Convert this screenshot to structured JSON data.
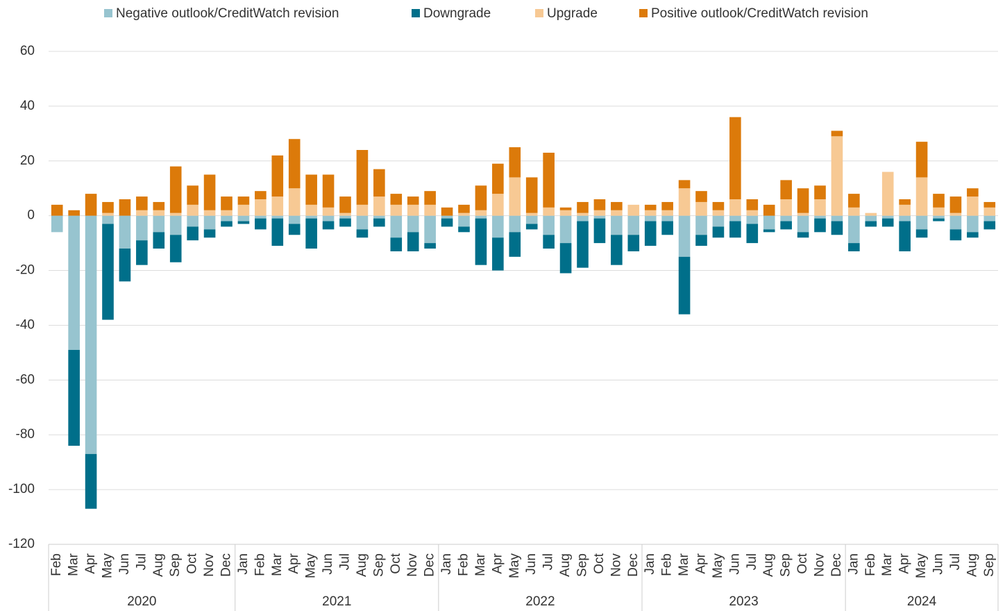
{
  "chart_data": {
    "type": "bar",
    "stacked": true,
    "groups": [
      {
        "label": "2020",
        "categories": [
          "Feb",
          "Mar",
          "Apr",
          "May",
          "Jun",
          "Jul",
          "Aug",
          "Sep",
          "Oct",
          "Nov",
          "Dec"
        ]
      },
      {
        "label": "2021",
        "categories": [
          "Jan",
          "Feb",
          "Mar",
          "Apr",
          "May",
          "Jun",
          "Jul",
          "Aug",
          "Sep",
          "Oct",
          "Nov",
          "Dec"
        ]
      },
      {
        "label": "2022",
        "categories": [
          "Jan",
          "Feb",
          "Mar",
          "Apr",
          "May",
          "Jun",
          "Jul",
          "Aug",
          "Sep",
          "Oct",
          "Nov",
          "Dec"
        ]
      },
      {
        "label": "2023",
        "categories": [
          "Jan",
          "Feb",
          "Mar",
          "Apr",
          "May",
          "Jun",
          "Jul",
          "Aug",
          "Sep",
          "Oct",
          "Nov",
          "Dec"
        ]
      },
      {
        "label": "2024",
        "categories": [
          "Jan",
          "Feb",
          "Mar",
          "Apr",
          "May",
          "Jun",
          "Jul",
          "Aug",
          "Sep"
        ]
      }
    ],
    "series": [
      {
        "name": "Negative outlook/CreditWatch revision",
        "color": "#97c4cf",
        "values": [
          -6,
          -49,
          -87,
          -3,
          -12,
          -9,
          -6,
          -7,
          -4,
          -5,
          -2,
          -2,
          -1,
          -1,
          -3,
          -1,
          -2,
          -1,
          -5,
          -1,
          -8,
          -6,
          -10,
          -1,
          -4,
          -1,
          -8,
          -6,
          -3,
          -7,
          -10,
          -2,
          -1,
          -7,
          -7,
          -2,
          -2,
          -15,
          -7,
          -4,
          -2,
          -3,
          -5,
          -2,
          -6,
          -1,
          -2,
          -10,
          -2,
          -1,
          -2,
          -5,
          -1,
          -5,
          -6,
          -2
        ]
      },
      {
        "name": "Downgrade",
        "color": "#006f8a",
        "values": [
          0,
          -35,
          -20,
          -35,
          -12,
          -9,
          -6,
          -10,
          -5,
          -3,
          -2,
          -1,
          -4,
          -10,
          -4,
          -11,
          -3,
          -3,
          -3,
          -3,
          -5,
          -7,
          -2,
          -3,
          -2,
          -17,
          -12,
          -9,
          -2,
          -5,
          -11,
          -17,
          -9,
          -11,
          -6,
          -9,
          -5,
          -21,
          -4,
          -4,
          -6,
          -7,
          -1,
          -3,
          -2,
          -5,
          -5,
          -3,
          -2,
          -3,
          -11,
          -3,
          -1,
          -4,
          -2,
          -3
        ]
      },
      {
        "name": "Upgrade",
        "color": "#f7c994",
        "values": [
          0,
          0,
          0,
          1,
          0,
          2,
          2,
          1,
          4,
          2,
          2,
          4,
          6,
          7,
          10,
          4,
          3,
          1,
          4,
          7,
          4,
          4,
          4,
          0,
          1,
          2,
          8,
          14,
          1,
          3,
          2,
          1,
          2,
          2,
          4,
          2,
          2,
          10,
          5,
          2,
          6,
          2,
          0,
          6,
          1,
          6,
          29,
          3,
          1,
          16,
          4,
          14,
          3,
          1,
          7,
          3
        ]
      },
      {
        "name": "Positive outlook/CreditWatch revision",
        "color": "#dc7a0a",
        "values": [
          4,
          2,
          8,
          4,
          6,
          5,
          3,
          17,
          7,
          13,
          5,
          3,
          3,
          15,
          18,
          11,
          12,
          6,
          20,
          10,
          4,
          3,
          5,
          3,
          3,
          9,
          11,
          11,
          13,
          20,
          1,
          4,
          4,
          3,
          0,
          2,
          3,
          3,
          4,
          3,
          30,
          4,
          4,
          7,
          9,
          5,
          2,
          5,
          0,
          0,
          2,
          13,
          5,
          6,
          3,
          2
        ]
      }
    ],
    "ylim": [
      -120,
      60
    ],
    "yticks": [
      -120,
      -100,
      -80,
      -60,
      -40,
      -20,
      0,
      20,
      40,
      60
    ],
    "grid": true
  }
}
